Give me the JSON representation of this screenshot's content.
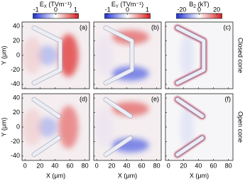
{
  "colorbars": [
    {
      "symbol": "E",
      "sub": "X",
      "unit": " (TVm⁻¹)",
      "lim": [
        -1.15,
        1.15
      ],
      "ticks": [
        -1,
        0,
        1
      ]
    },
    {
      "symbol": "E",
      "sub": "Y",
      "unit": " (TVm⁻¹)",
      "lim": [
        -1.15,
        1.15
      ],
      "ticks": [
        -1,
        0,
        1
      ]
    },
    {
      "symbol": "B",
      "sub": "Z",
      "unit": " (kT)",
      "lim": [
        -26,
        26
      ],
      "ticks": [
        -20,
        0,
        20
      ]
    }
  ],
  "panels": [
    {
      "label": "(a)"
    },
    {
      "label": "(b)"
    },
    {
      "label": "(c)"
    },
    {
      "label": "(d)"
    },
    {
      "label": "(e)"
    },
    {
      "label": "(f)"
    }
  ],
  "row_labels": [
    "Closed cone",
    "Open cone"
  ],
  "x_axis": {
    "label": "X (μm)",
    "lim": [
      -4,
      86
    ],
    "ticks": [
      0,
      20,
      40,
      60,
      80
    ]
  },
  "y_axis": {
    "label": "Y (μm)",
    "lim": [
      -46,
      46
    ],
    "ticks": [
      40,
      20,
      0,
      -20,
      -40
    ]
  }
}
